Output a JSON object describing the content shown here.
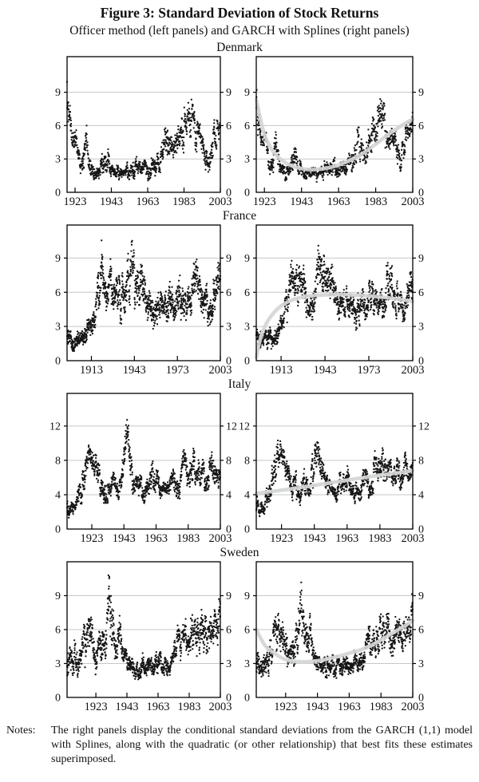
{
  "header": {
    "title": "Figure 3: Standard Deviation of Stock Returns",
    "subtitle": "Officer method (left panels) and GARCH with Splines (right panels)",
    "left_panel_method": "Officer method",
    "right_panel_method": "GARCH with Splines"
  },
  "notes": {
    "label": "Notes:",
    "text": "The right panels display the conditional standard deviations from the GARCH (1,1) model with Splines, along with the quadratic (or other relationship) that best fits these estimates superimposed."
  },
  "styles": {
    "axis_color": "#000000",
    "grid_color": "#c7c7c7",
    "point_color": "#161616",
    "curve_color": "#d4d6d6",
    "text_color": "#121212"
  },
  "chart_data": [
    {
      "type": "scatter",
      "title": "Denmark",
      "x_min": 1918.6,
      "x_max": 2003,
      "x_ticks": [
        1923,
        1943,
        1963,
        1983,
        2003
      ],
      "y_ticks": [
        0,
        3,
        6,
        9
      ],
      "ylim": [
        0,
        12.2
      ],
      "envelope_format": "[year, center, half_spread]",
      "scatter_envelope": [
        [
          1918.6,
          8.2,
          2.6
        ],
        [
          1921,
          5.3,
          1.0
        ],
        [
          1924,
          4.5,
          1.1
        ],
        [
          1926,
          2.0,
          0.7
        ],
        [
          1929,
          4.0,
          1.8
        ],
        [
          1932,
          1.8,
          0.8
        ],
        [
          1936,
          1.7,
          0.6
        ],
        [
          1940,
          3.2,
          1.4
        ],
        [
          1943,
          1.9,
          0.7
        ],
        [
          1948,
          1.6,
          0.6
        ],
        [
          1953,
          1.9,
          0.8
        ],
        [
          1958,
          2.1,
          0.9
        ],
        [
          1963,
          2.2,
          0.9
        ],
        [
          1967,
          2.4,
          0.9
        ],
        [
          1970,
          3.0,
          1.0
        ],
        [
          1973,
          4.4,
          1.9
        ],
        [
          1977,
          3.8,
          1.3
        ],
        [
          1980,
          4.4,
          1.5
        ],
        [
          1984,
          6.0,
          1.9
        ],
        [
          1987,
          6.6,
          1.9
        ],
        [
          1990,
          5.2,
          1.4
        ],
        [
          1993,
          4.7,
          1.3
        ],
        [
          1996,
          2.6,
          1.1
        ],
        [
          1999,
          4.6,
          1.4
        ],
        [
          2003,
          6.3,
          1.2
        ]
      ],
      "fit_curve": [
        [
          1918.6,
          8.3
        ],
        [
          1923,
          5.2
        ],
        [
          1928,
          3.6
        ],
        [
          1934,
          2.7
        ],
        [
          1940,
          2.25
        ],
        [
          1947,
          2.05
        ],
        [
          1954,
          2.1
        ],
        [
          1961,
          2.35
        ],
        [
          1968,
          2.8
        ],
        [
          1975,
          3.4
        ],
        [
          1982,
          4.2
        ],
        [
          1989,
          5.1
        ],
        [
          1996,
          5.9
        ],
        [
          2003,
          6.6
        ]
      ]
    },
    {
      "type": "scatter",
      "title": "France",
      "x_min": 1896,
      "x_max": 2003,
      "x_ticks": [
        1913,
        1943,
        1973,
        2003
      ],
      "y_ticks": [
        0,
        3,
        6,
        9
      ],
      "ylim": [
        0,
        11.9
      ],
      "envelope_format": "[year, center, half_spread]",
      "scatter_envelope": [
        [
          1896,
          1.9,
          0.9
        ],
        [
          1900,
          1.7,
          0.8
        ],
        [
          1904,
          1.9,
          0.9
        ],
        [
          1908,
          2.2,
          1.0
        ],
        [
          1912,
          2.8,
          1.1
        ],
        [
          1915,
          3.8,
          1.3
        ],
        [
          1918,
          6.0,
          2.0
        ],
        [
          1920,
          8.0,
          2.2
        ],
        [
          1922,
          6.3,
          1.8
        ],
        [
          1925,
          6.8,
          1.9
        ],
        [
          1928,
          6.3,
          1.8
        ],
        [
          1931,
          5.8,
          1.9
        ],
        [
          1934,
          5.2,
          1.8
        ],
        [
          1937,
          7.0,
          2.2
        ],
        [
          1940,
          7.8,
          2.3
        ],
        [
          1943,
          7.2,
          2.4
        ],
        [
          1946,
          6.6,
          2.1
        ],
        [
          1949,
          5.8,
          1.9
        ],
        [
          1952,
          4.9,
          1.6
        ],
        [
          1955,
          4.5,
          1.4
        ],
        [
          1958,
          5.1,
          1.7
        ],
        [
          1961,
          4.8,
          1.5
        ],
        [
          1964,
          4.3,
          1.3
        ],
        [
          1968,
          5.3,
          1.9
        ],
        [
          1971,
          4.8,
          1.5
        ],
        [
          1974,
          5.6,
          1.9
        ],
        [
          1977,
          5.1,
          1.6
        ],
        [
          1980,
          4.6,
          1.4
        ],
        [
          1983,
          5.6,
          1.8
        ],
        [
          1986,
          6.6,
          2.2
        ],
        [
          1988,
          7.0,
          2.3
        ],
        [
          1991,
          5.6,
          1.8
        ],
        [
          1994,
          4.8,
          1.5
        ],
        [
          1997,
          4.6,
          1.4
        ],
        [
          2000,
          6.0,
          1.9
        ],
        [
          2003,
          7.6,
          1.9
        ]
      ],
      "fit_curve": [
        [
          1896,
          0.3
        ],
        [
          1899,
          2.0
        ],
        [
          1903,
          3.3
        ],
        [
          1908,
          4.2
        ],
        [
          1913,
          4.8
        ],
        [
          1920,
          5.3
        ],
        [
          1928,
          5.6
        ],
        [
          1936,
          5.72
        ],
        [
          1944,
          5.78
        ],
        [
          1952,
          5.8
        ],
        [
          1960,
          5.78
        ],
        [
          1968,
          5.72
        ],
        [
          1976,
          5.65
        ],
        [
          1984,
          5.55
        ],
        [
          1992,
          5.42
        ],
        [
          2003,
          5.2
        ]
      ]
    },
    {
      "type": "scatter",
      "title": "Italy",
      "x_min": 1907.6,
      "x_max": 2003,
      "x_ticks": [
        1923,
        1943,
        1963,
        1983,
        2003
      ],
      "y_ticks": [
        0,
        4,
        8,
        12
      ],
      "ylim": [
        0,
        15.8
      ],
      "envelope_format": "[year, center, half_spread]",
      "scatter_envelope": [
        [
          1907.6,
          2.6,
          1.1
        ],
        [
          1910,
          2.4,
          1.0
        ],
        [
          1913,
          3.0,
          1.2
        ],
        [
          1916,
          4.8,
          1.8
        ],
        [
          1919,
          7.2,
          2.2
        ],
        [
          1922,
          8.8,
          1.9
        ],
        [
          1925,
          7.4,
          1.5
        ],
        [
          1928,
          5.6,
          1.7
        ],
        [
          1931,
          5.0,
          1.7
        ],
        [
          1934,
          4.2,
          1.3
        ],
        [
          1937,
          5.4,
          1.5
        ],
        [
          1940,
          4.6,
          1.4
        ],
        [
          1943,
          8.0,
          2.6
        ],
        [
          1945,
          11.0,
          2.2
        ],
        [
          1947,
          7.5,
          2.2
        ],
        [
          1950,
          4.8,
          1.3
        ],
        [
          1953,
          5.0,
          1.4
        ],
        [
          1956,
          4.2,
          1.2
        ],
        [
          1959,
          5.6,
          1.8
        ],
        [
          1962,
          6.4,
          1.9
        ],
        [
          1965,
          4.8,
          1.4
        ],
        [
          1968,
          4.4,
          1.3
        ],
        [
          1971,
          4.2,
          1.2
        ],
        [
          1974,
          6.0,
          1.8
        ],
        [
          1977,
          4.8,
          1.4
        ],
        [
          1980,
          7.0,
          2.2
        ],
        [
          1983,
          6.6,
          1.9
        ],
        [
          1986,
          7.8,
          2.2
        ],
        [
          1989,
          6.6,
          1.8
        ],
        [
          1992,
          6.6,
          1.8
        ],
        [
          1995,
          6.0,
          1.7
        ],
        [
          1998,
          7.0,
          1.9
        ],
        [
          2001,
          6.6,
          1.6
        ],
        [
          2003,
          6.4,
          1.4
        ]
      ],
      "fit_curve": [
        [
          1907.6,
          4.15
        ],
        [
          1920,
          4.45
        ],
        [
          1935,
          4.85
        ],
        [
          1950,
          5.3
        ],
        [
          1965,
          5.75
        ],
        [
          1980,
          6.2
        ],
        [
          1992,
          6.5
        ],
        [
          2003,
          6.8
        ]
      ]
    },
    {
      "type": "scatter",
      "title": "Sweden",
      "x_min": 1904.5,
      "x_max": 2003,
      "x_ticks": [
        1923,
        1943,
        1963,
        1983,
        2003
      ],
      "y_ticks": [
        0,
        3,
        6,
        9
      ],
      "ylim": [
        0,
        12.0
      ],
      "envelope_format": "[year, center, half_spread]",
      "scatter_envelope": [
        [
          1904.5,
          3.6,
          1.5
        ],
        [
          1908,
          3.0,
          1.4
        ],
        [
          1911,
          3.4,
          1.5
        ],
        [
          1914,
          4.2,
          1.7
        ],
        [
          1917,
          5.8,
          1.9
        ],
        [
          1920,
          5.6,
          1.9
        ],
        [
          1923,
          3.9,
          1.6
        ],
        [
          1926,
          4.4,
          1.7
        ],
        [
          1929,
          4.6,
          1.9
        ],
        [
          1931,
          7.0,
          3.0
        ],
        [
          1933,
          7.6,
          3.4
        ],
        [
          1935,
          4.6,
          1.6
        ],
        [
          1938,
          5.4,
          1.9
        ],
        [
          1941,
          3.4,
          1.1
        ],
        [
          1944,
          3.0,
          1.0
        ],
        [
          1947,
          2.6,
          0.9
        ],
        [
          1950,
          2.6,
          0.9
        ],
        [
          1953,
          3.0,
          1.1
        ],
        [
          1956,
          2.8,
          1.0
        ],
        [
          1960,
          3.0,
          1.1
        ],
        [
          1964,
          3.2,
          1.1
        ],
        [
          1968,
          3.0,
          1.0
        ],
        [
          1972,
          3.3,
          1.1
        ],
        [
          1976,
          5.2,
          1.5
        ],
        [
          1980,
          4.9,
          1.4
        ],
        [
          1984,
          5.8,
          1.8
        ],
        [
          1987,
          6.4,
          1.8
        ],
        [
          1990,
          5.4,
          1.9
        ],
        [
          1993,
          6.2,
          2.3
        ],
        [
          1996,
          5.0,
          1.7
        ],
        [
          2000,
          6.4,
          2.0
        ],
        [
          2003,
          7.4,
          1.9
        ]
      ],
      "fit_curve": [
        [
          1904.5,
          6.0
        ],
        [
          1910,
          4.6
        ],
        [
          1916,
          3.9
        ],
        [
          1922,
          3.4
        ],
        [
          1928,
          3.2
        ],
        [
          1934,
          3.15
        ],
        [
          1940,
          3.2
        ],
        [
          1946,
          3.3
        ],
        [
          1952,
          3.5
        ],
        [
          1958,
          3.7
        ],
        [
          1964,
          3.95
        ],
        [
          1970,
          4.2
        ],
        [
          1976,
          4.55
        ],
        [
          1982,
          5.0
        ],
        [
          1988,
          5.5
        ],
        [
          1994,
          6.0
        ],
        [
          2000,
          6.5
        ],
        [
          2003,
          6.8
        ]
      ]
    }
  ]
}
